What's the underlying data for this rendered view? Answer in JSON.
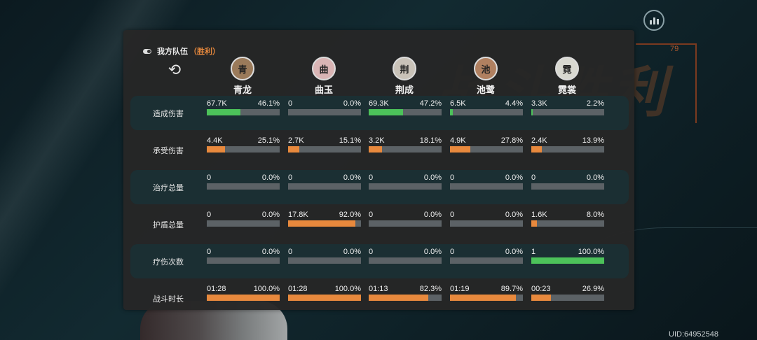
{
  "team": {
    "title": "我方队伍",
    "result": "（胜利）"
  },
  "characters": [
    {
      "name": "青龙",
      "avatar_color": "#9a7a5a",
      "glyph": "青"
    },
    {
      "name": "曲玉",
      "avatar_color": "#d9b4b4",
      "glyph": "曲"
    },
    {
      "name": "荆成",
      "avatar_color": "#c9c2b8",
      "glyph": "荆"
    },
    {
      "name": "池鹭",
      "avatar_color": "#b08060",
      "glyph": "池"
    },
    {
      "name": "霓裳",
      "avatar_color": "#d8d8d0",
      "glyph": "霓"
    }
  ],
  "stats": [
    {
      "label": "造成伤害",
      "dark": true,
      "color": "#4cc25a",
      "cells": [
        {
          "value": "67.7K",
          "percent": "46.1%",
          "fraction": 0.461
        },
        {
          "value": "0",
          "percent": "0.0%",
          "fraction": 0
        },
        {
          "value": "69.3K",
          "percent": "47.2%",
          "fraction": 0.472
        },
        {
          "value": "6.5K",
          "percent": "4.4%",
          "fraction": 0.044
        },
        {
          "value": "3.3K",
          "percent": "2.2%",
          "fraction": 0.022
        }
      ]
    },
    {
      "label": "承受伤害",
      "dark": false,
      "color": "#e8893d",
      "cells": [
        {
          "value": "4.4K",
          "percent": "25.1%",
          "fraction": 0.251
        },
        {
          "value": "2.7K",
          "percent": "15.1%",
          "fraction": 0.151
        },
        {
          "value": "3.2K",
          "percent": "18.1%",
          "fraction": 0.181
        },
        {
          "value": "4.9K",
          "percent": "27.8%",
          "fraction": 0.278
        },
        {
          "value": "2.4K",
          "percent": "13.9%",
          "fraction": 0.139
        }
      ]
    },
    {
      "label": "治疗总量",
      "dark": true,
      "color": "#4cc25a",
      "cells": [
        {
          "value": "0",
          "percent": "0.0%",
          "fraction": 0
        },
        {
          "value": "0",
          "percent": "0.0%",
          "fraction": 0
        },
        {
          "value": "0",
          "percent": "0.0%",
          "fraction": 0
        },
        {
          "value": "0",
          "percent": "0.0%",
          "fraction": 0
        },
        {
          "value": "0",
          "percent": "0.0%",
          "fraction": 0
        }
      ]
    },
    {
      "label": "护盾总量",
      "dark": false,
      "color": "#e8893d",
      "cells": [
        {
          "value": "0",
          "percent": "0.0%",
          "fraction": 0
        },
        {
          "value": "17.8K",
          "percent": "92.0%",
          "fraction": 0.92
        },
        {
          "value": "0",
          "percent": "0.0%",
          "fraction": 0
        },
        {
          "value": "0",
          "percent": "0.0%",
          "fraction": 0
        },
        {
          "value": "1.6K",
          "percent": "8.0%",
          "fraction": 0.08
        }
      ]
    },
    {
      "label": "疗伤次数",
      "dark": true,
      "color": "#4cc25a",
      "cells": [
        {
          "value": "0",
          "percent": "0.0%",
          "fraction": 0
        },
        {
          "value": "0",
          "percent": "0.0%",
          "fraction": 0
        },
        {
          "value": "0",
          "percent": "0.0%",
          "fraction": 0
        },
        {
          "value": "0",
          "percent": "0.0%",
          "fraction": 0
        },
        {
          "value": "1",
          "percent": "100.0%",
          "fraction": 1.0
        }
      ]
    },
    {
      "label": "战斗时长",
      "dark": false,
      "color": "#e8893d",
      "cells": [
        {
          "value": "01:28",
          "percent": "100.0%",
          "fraction": 1.0
        },
        {
          "value": "01:28",
          "percent": "100.0%",
          "fraction": 1.0
        },
        {
          "value": "01:13",
          "percent": "82.3%",
          "fraction": 0.823
        },
        {
          "value": "01:19",
          "percent": "89.7%",
          "fraction": 0.897
        },
        {
          "value": "00:23",
          "percent": "26.9%",
          "fraction": 0.269
        }
      ]
    }
  ],
  "background_text": "战斗胜利",
  "deco_number": "79",
  "uid": "UID:64952548",
  "colors": {
    "accent_orange": "#e8893d",
    "accent_green": "#4cc25a",
    "panel": "#262626",
    "row_dark": "#1b2f33"
  }
}
